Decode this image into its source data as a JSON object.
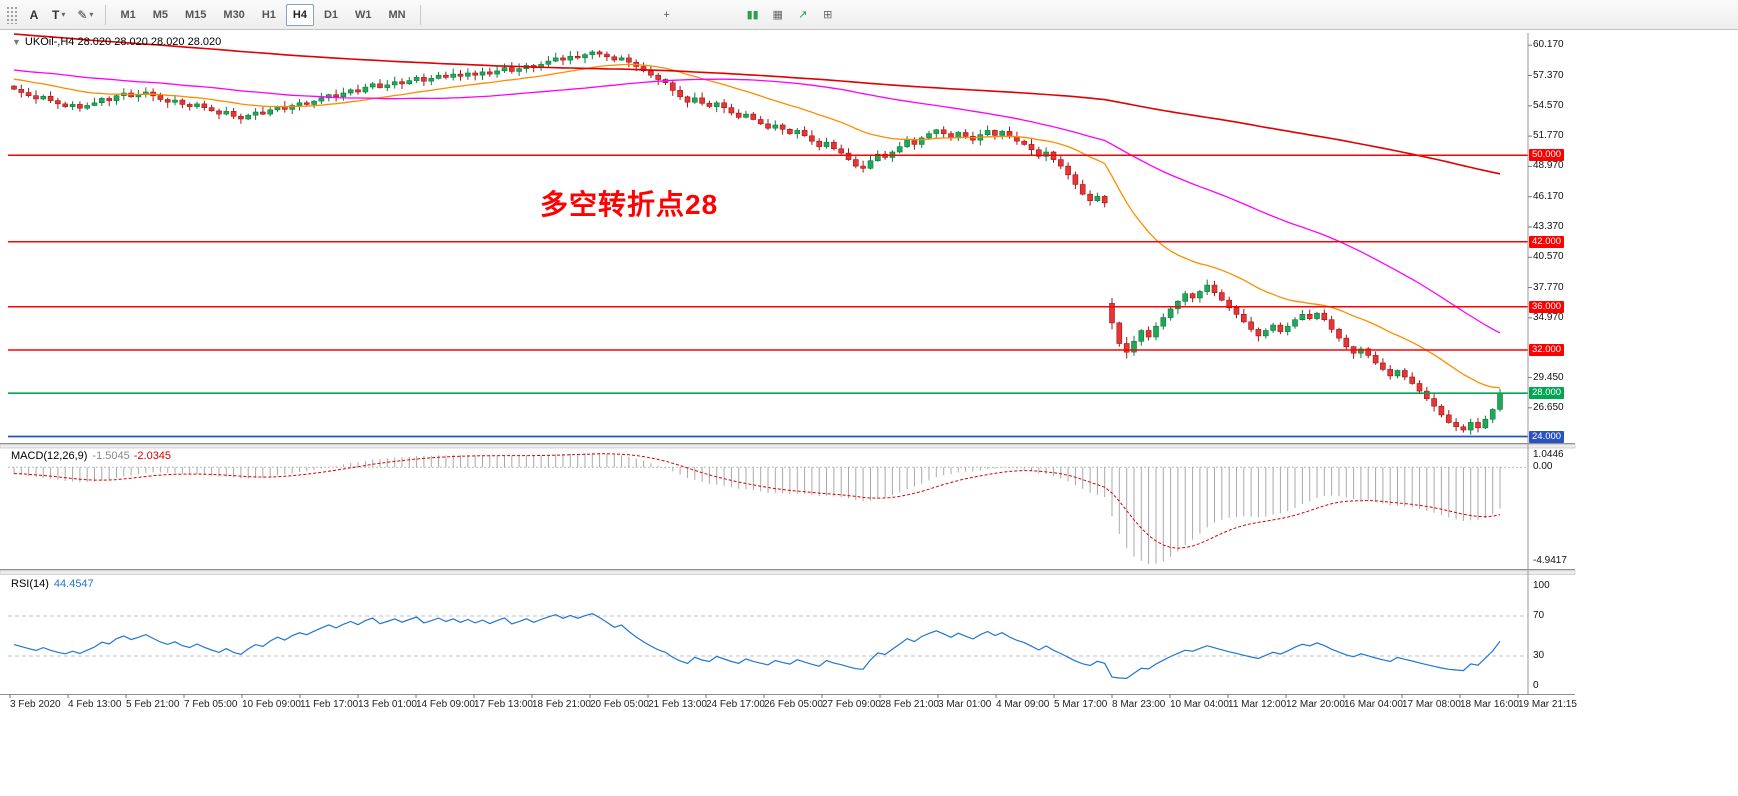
{
  "toolbar": {
    "left_tools": [
      {
        "id": "label-tool",
        "glyph": "A"
      },
      {
        "id": "text-tool",
        "glyph": "T"
      },
      {
        "id": "draw-tool",
        "glyph": "✎"
      }
    ],
    "timeframes": [
      "M1",
      "M5",
      "M15",
      "M30",
      "H1",
      "H4",
      "D1",
      "W1",
      "MN"
    ],
    "active_timeframe": "H4",
    "mid_tools": [
      {
        "id": "crosshair",
        "glyph": "+",
        "color": "#555555"
      }
    ],
    "right_tools": [
      {
        "id": "tick-bars",
        "glyph": "▮▮",
        "color": "#2E9E4F"
      },
      {
        "id": "grid",
        "glyph": "▦",
        "color": "#666666"
      },
      {
        "id": "trend-up",
        "glyph": "↗",
        "color": "#2E9E4F"
      },
      {
        "id": "zoom",
        "glyph": "⊞",
        "color": "#666666"
      }
    ]
  },
  "chart": {
    "symbol_label": "UKOil-,H4",
    "ohlc_label": "28.020 28.020 28.020 28.020",
    "annotation": {
      "text": "多空转折点28",
      "color": "#FF0000"
    },
    "price_axis": [
      {
        "text": "60.170",
        "price": 60.17
      },
      {
        "text": "57.370",
        "price": 57.37
      },
      {
        "text": "54.570",
        "price": 54.57
      },
      {
        "text": "51.770",
        "price": 51.77
      },
      {
        "text": "48.970",
        "price": 48.97
      },
      {
        "text": "46.170",
        "price": 46.17
      },
      {
        "text": "43.370",
        "price": 43.37
      },
      {
        "text": "40.570",
        "price": 40.57
      },
      {
        "text": "37.770",
        "price": 37.77
      },
      {
        "text": "34.970",
        "price": 34.97
      },
      {
        "text": "29.450",
        "price": 29.45
      },
      {
        "text": "26.650",
        "price": 26.65
      }
    ],
    "levels": [
      {
        "price": 50.0,
        "label": "50.000",
        "color": "#FF0000",
        "width": 1.5
      },
      {
        "price": 42.0,
        "label": "42.000",
        "color": "#FF0000",
        "width": 1.5
      },
      {
        "price": 36.0,
        "label": "36.000",
        "color": "#FF0000",
        "width": 1.5
      },
      {
        "price": 32.0,
        "label": "32.000",
        "color": "#FF0000",
        "width": 1.5
      },
      {
        "price": 28.0,
        "label": "28.000",
        "color": "#00A651",
        "width": 1.6
      },
      {
        "price": 24.0,
        "label": "24.000",
        "color": "#2A52BE",
        "width": 1.8
      }
    ],
    "colors": {
      "candle_up": "#1FA85A",
      "candle_up_edge": "#0E7A3C",
      "candle_down": "#E53535",
      "candle_down_edge": "#A31515",
      "background": "#FFFFFF"
    }
  },
  "chart_data": {
    "type": "candlestick",
    "symbol": "UKOil-",
    "timeframe": "H4",
    "view": {
      "price_top": 61.3,
      "price_bottom": 23.4
    },
    "open_first": 56.4,
    "closes": [
      56.1,
      55.8,
      55.5,
      55.2,
      55.45,
      55.05,
      54.75,
      54.5,
      54.7,
      54.35,
      54.6,
      54.85,
      55.25,
      55.05,
      55.5,
      55.75,
      55.4,
      55.6,
      55.85,
      55.5,
      55.15,
      54.9,
      55.1,
      54.7,
      54.5,
      54.75,
      54.4,
      54.1,
      53.8,
      54.05,
      53.6,
      53.35,
      53.7,
      54.0,
      53.8,
      54.2,
      54.5,
      54.25,
      54.6,
      54.85,
      54.7,
      55.0,
      55.3,
      55.6,
      55.4,
      55.75,
      56.05,
      55.85,
      56.3,
      56.6,
      56.25,
      56.5,
      56.8,
      56.6,
      56.9,
      57.2,
      56.85,
      57.1,
      57.4,
      57.2,
      57.5,
      57.3,
      57.6,
      57.4,
      57.7,
      57.5,
      57.8,
      58.1,
      57.75,
      58.0,
      58.3,
      58.1,
      58.4,
      58.7,
      59.0,
      58.8,
      59.15,
      59.0,
      59.3,
      59.55,
      59.35,
      59.1,
      58.8,
      59.0,
      58.6,
      58.2,
      57.8,
      57.4,
      57.0,
      56.7,
      56.0,
      55.4,
      54.9,
      55.3,
      54.8,
      54.5,
      54.85,
      54.4,
      53.9,
      53.5,
      53.8,
      53.3,
      52.9,
      52.5,
      52.8,
      52.4,
      52.0,
      52.3,
      51.8,
      51.3,
      50.8,
      51.2,
      50.6,
      50.2,
      49.6,
      49.0,
      48.8,
      49.5,
      50.1,
      49.8,
      50.3,
      50.8,
      51.4,
      51.0,
      51.6,
      52.0,
      52.35,
      52.0,
      51.6,
      52.1,
      51.75,
      51.4,
      51.9,
      52.3,
      51.85,
      52.2,
      51.7,
      51.3,
      51.0,
      50.5,
      49.9,
      50.3,
      49.6,
      49.0,
      48.2,
      47.3,
      46.4,
      45.8,
      46.2,
      45.6,
      34.5,
      32.6,
      31.8,
      32.8,
      33.8,
      33.2,
      34.2,
      35.0,
      35.8,
      36.5,
      37.2,
      36.8,
      37.4,
      38.0,
      37.3,
      36.6,
      35.9,
      35.3,
      34.6,
      33.9,
      33.3,
      33.8,
      34.3,
      33.7,
      34.2,
      34.8,
      35.3,
      34.9,
      35.4,
      34.8,
      33.9,
      33.1,
      32.3,
      31.7,
      32.1,
      31.5,
      30.8,
      30.2,
      29.6,
      30.1,
      29.5,
      28.9,
      28.2,
      27.5,
      26.8,
      26.0,
      25.3,
      24.9,
      24.6,
      25.3,
      24.8,
      25.6,
      26.5,
      28.02
    ],
    "open_overrides": {
      "150": 36.3
    },
    "hl_overrides": {
      "150": [
        36.8,
        33.9
      ],
      "152": [
        33.2,
        31.2
      ],
      "203": [
        28.4,
        26.3
      ]
    },
    "prehistory": {
      "from": 66.0,
      "to": 56.5,
      "count": 200
    },
    "moving_averages": [
      {
        "name": "fast-ma",
        "period": 24,
        "type": "ema",
        "color": "#FF8C00"
      },
      {
        "name": "medium-ma",
        "period": 60,
        "type": "sma",
        "color": "#FF00FF"
      },
      {
        "name": "slow-ma",
        "period": 200,
        "type": "sma",
        "color": "#E00000"
      }
    ]
  },
  "macd": {
    "label": "MACD(12,26,9)",
    "value_main": "-1.5045",
    "value_signal": "-2.0345",
    "fast": 12,
    "slow": 26,
    "signal": 9,
    "histogram_color": "#A8A8A8",
    "signal_color": "#DD0000",
    "scale": {
      "top": "1.0446",
      "zero": "0.00",
      "bottom": "-4.9417"
    }
  },
  "rsi": {
    "label": "RSI(14)",
    "value": "44.4547",
    "period": 14,
    "line_color": "#2176D2",
    "levels": [
      70,
      30
    ],
    "scale": [
      {
        "text": "100",
        "value": 100
      },
      {
        "text": "70",
        "value": 70
      },
      {
        "text": "30",
        "value": 30
      },
      {
        "text": "0",
        "value": 0
      }
    ]
  },
  "time_axis": {
    "labels": [
      "3 Feb 2020",
      "4 Feb 13:00",
      "5 Feb 21:00",
      "7 Feb 05:00",
      "10 Feb 09:00",
      "11 Feb 17:00",
      "13 Feb 01:00",
      "14 Feb 09:00",
      "17 Feb 13:00",
      "18 Feb 21:00",
      "20 Feb 05:00",
      "21 Feb 13:00",
      "24 Feb 17:00",
      "26 Feb 05:00",
      "27 Feb 09:00",
      "28 Feb 21:00",
      "3 Mar 01:00",
      "4 Mar 09:00",
      "5 Mar 17:00",
      "8 Mar 23:00",
      "10 Mar 04:00",
      "11 Mar 12:00",
      "12 Mar 20:00",
      "16 Mar 04:00",
      "17 Mar 08:00",
      "18 Mar 16:00",
      "19 Mar 21:15"
    ]
  }
}
